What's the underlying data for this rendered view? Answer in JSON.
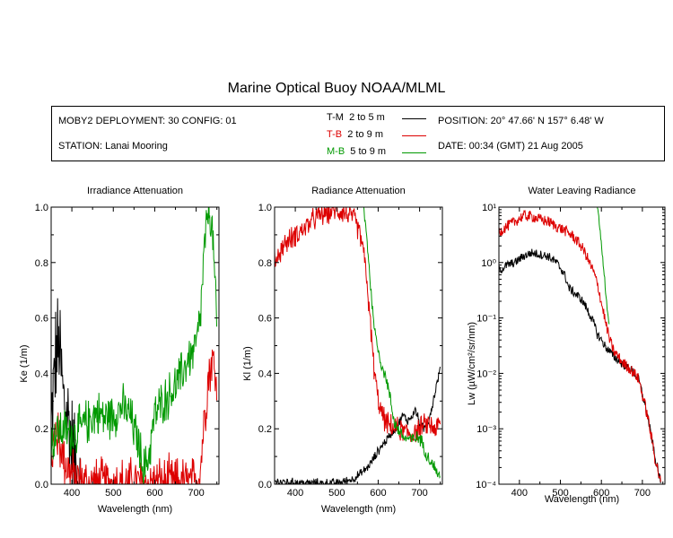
{
  "title": "Marine Optical Buoy NOAA/MLML",
  "info": {
    "deployment": "MOBY2 DEPLOYMENT: 30 CONFIG: 01",
    "station": "STATION: Lanai Mooring",
    "position": "POSITION: 20° 47.66' N   157° 6.48' W",
    "date": "DATE: 00:34 (GMT) 21 Aug 2005"
  },
  "legend": [
    {
      "label": "T-M",
      "range": "2 to 5  m",
      "color": "#000000"
    },
    {
      "label": "T-B",
      "range": "2 to 9  m",
      "color": "#dd0000"
    },
    {
      "label": "M-B",
      "range": "5 to 9  m",
      "color": "#009900"
    }
  ],
  "chart_data": [
    {
      "type": "line",
      "title": "Irradiance Attenuation",
      "xlabel": "Wavelength (nm)",
      "ylabel": "Ke  (1/m)",
      "xlim": [
        350,
        755
      ],
      "ylim": [
        0,
        1.0
      ],
      "xticks": [
        400,
        500,
        600,
        700
      ],
      "yticks": [
        0,
        0.2,
        0.4,
        0.6,
        0.8,
        1.0
      ],
      "ytick_labels": [
        "0.0",
        "0.2",
        "0.4",
        "0.6",
        "0.8",
        "1.0"
      ],
      "series": [
        {
          "label": "T-M",
          "x": [
            350,
            360,
            370,
            380,
            390,
            400,
            410,
            420
          ],
          "y": [
            0.2,
            0.45,
            0.5,
            0.3,
            0.25,
            0.15,
            0.05,
            0.0
          ],
          "noise": 0.25
        },
        {
          "label": "T-B",
          "x": [
            350,
            360,
            370,
            380,
            390,
            400,
            410,
            420,
            430,
            700,
            710,
            720,
            730,
            740,
            750
          ],
          "y": [
            0.05,
            0.2,
            0.15,
            0.1,
            0.06,
            0.03,
            0.02,
            0.01,
            0.0,
            0.0,
            0.05,
            0.25,
            0.4,
            0.45,
            0.35
          ],
          "noise": 0.12
        },
        {
          "label": "M-B",
          "x": [
            350,
            370,
            400,
            420,
            440,
            460,
            480,
            500,
            520,
            540,
            560,
            575,
            585,
            600,
            620,
            640,
            660,
            680,
            690,
            700,
            710,
            720,
            730,
            740,
            750
          ],
          "y": [
            0.15,
            0.2,
            0.18,
            0.2,
            0.23,
            0.26,
            0.24,
            0.25,
            0.28,
            0.25,
            0.15,
            0.05,
            0.1,
            0.25,
            0.3,
            0.33,
            0.38,
            0.45,
            0.47,
            0.5,
            0.6,
            0.85,
            1.0,
            0.9,
            0.55
          ],
          "noise": 0.1
        }
      ]
    },
    {
      "type": "line",
      "title": "Radiance Attenuation",
      "xlabel": "Wavelength (nm)",
      "ylabel": "Kl  (1/m)",
      "xlim": [
        350,
        755
      ],
      "ylim": [
        0,
        1.0
      ],
      "xticks": [
        400,
        500,
        600,
        700
      ],
      "yticks": [
        0,
        0.2,
        0.4,
        0.6,
        0.8,
        1.0
      ],
      "ytick_labels": [
        "0.0",
        "0.2",
        "0.4",
        "0.6",
        "0.8",
        "1.0"
      ],
      "series": [
        {
          "label": "T-M",
          "x": [
            350,
            400,
            450,
            500,
            520,
            540,
            560,
            580,
            600,
            615,
            620,
            640,
            650,
            660,
            670,
            680,
            690,
            700,
            710,
            720,
            730,
            740,
            750
          ],
          "y": [
            0.01,
            0.005,
            0.004,
            0.004,
            0.01,
            0.02,
            0.04,
            0.07,
            0.12,
            0.15,
            0.16,
            0.2,
            0.22,
            0.25,
            0.23,
            0.24,
            0.27,
            0.22,
            0.2,
            0.22,
            0.28,
            0.35,
            0.42
          ],
          "noise": 0.02
        },
        {
          "label": "T-B",
          "x": [
            350,
            370,
            400,
            420,
            440,
            460,
            480,
            500,
            520,
            540,
            550,
            560,
            570,
            580,
            590,
            600,
            610,
            620,
            630,
            640,
            650,
            660,
            670,
            680,
            690,
            700,
            720,
            740,
            750
          ],
          "y": [
            0.8,
            0.86,
            0.9,
            0.92,
            0.95,
            0.97,
            0.98,
            0.99,
            0.98,
            0.96,
            0.93,
            0.88,
            0.78,
            0.6,
            0.42,
            0.3,
            0.25,
            0.22,
            0.21,
            0.2,
            0.2,
            0.19,
            0.19,
            0.18,
            0.19,
            0.2,
            0.22,
            0.2,
            0.22
          ],
          "noise": 0.05
        },
        {
          "label": "M-B",
          "x": [
            565,
            575,
            585,
            595,
            605,
            615,
            620,
            640,
            660,
            680,
            700,
            720,
            740,
            750
          ],
          "y": [
            1.0,
            0.85,
            0.65,
            0.52,
            0.45,
            0.4,
            0.38,
            0.22,
            0.17,
            0.16,
            0.17,
            0.1,
            0.05,
            0.02
          ],
          "noise": 0.03
        }
      ]
    },
    {
      "type": "line",
      "title": "Water Leaving Radiance",
      "xlabel": "Wavelength (nm)",
      "ylabel": "Lw  (µW/cm²/sr/nm)",
      "log_y": true,
      "xlim": [
        350,
        755
      ],
      "ylim": [
        0.0001,
        10
      ],
      "xticks": [
        400,
        500,
        600,
        700
      ],
      "yticks": [
        0.0001,
        0.001,
        0.01,
        0.1,
        1,
        10
      ],
      "ytick_labels": [
        "10⁻⁴",
        "10⁻³",
        "10⁻²",
        "10⁻¹",
        "10⁰",
        "10¹"
      ],
      "series": [
        {
          "label": "T-M",
          "x": [
            350,
            370,
            390,
            410,
            430,
            450,
            470,
            490,
            510,
            520,
            530,
            550,
            570,
            590,
            610,
            630,
            650,
            670,
            690,
            700,
            710,
            720,
            730,
            740,
            745
          ],
          "y": [
            0.7,
            0.9,
            1.0,
            1.3,
            1.5,
            1.4,
            1.3,
            1.0,
            0.6,
            0.35,
            0.3,
            0.22,
            0.12,
            0.05,
            0.03,
            0.02,
            0.015,
            0.012,
            0.008,
            0.004,
            0.002,
            0.0008,
            0.0003,
            0.00015,
            0.0001
          ],
          "noise": 0.08
        },
        {
          "label": "T-B",
          "x": [
            350,
            370,
            390,
            410,
            430,
            450,
            470,
            490,
            510,
            530,
            550,
            570,
            590,
            600,
            610,
            620,
            630,
            650,
            670,
            690,
            700,
            710,
            720,
            730,
            740,
            745
          ],
          "y": [
            3.5,
            4.5,
            5.5,
            7.0,
            6.8,
            6.0,
            5.5,
            4.5,
            3.8,
            3.0,
            2.0,
            1.0,
            0.4,
            0.18,
            0.08,
            0.04,
            0.025,
            0.016,
            0.012,
            0.008,
            0.004,
            0.002,
            0.0008,
            0.0003,
            0.00015,
            0.0001
          ],
          "noise": 0.1
        },
        {
          "label": "M-B",
          "x": [
            590,
            595,
            600,
            605,
            610,
            615,
            620
          ],
          "y": [
            10,
            5,
            2,
            0.8,
            0.3,
            0.12,
            0.06
          ],
          "noise": 0.05
        }
      ]
    }
  ]
}
